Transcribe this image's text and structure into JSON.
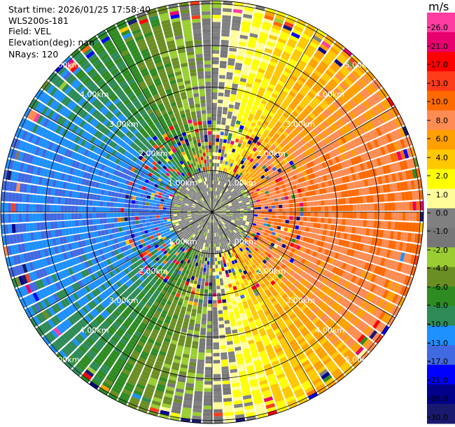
{
  "header": {
    "start_time": "Start time: 2026/01/25 17:58:40",
    "instrument": "WLS200s-181",
    "field": "Field: VEL",
    "elevation": "Elevation(deg): nan",
    "nrays": "NRays: 120"
  },
  "ppi": {
    "num_rays": 120,
    "range_labels": [
      "1.00km",
      "2.00km",
      "3.00km",
      "4.00km",
      "5.00km"
    ]
  },
  "colorbar": {
    "unit": "m/s",
    "tick_labels": [
      "26.0",
      "21.0",
      "17.0",
      "13.0",
      "10.0",
      "8.0",
      "6.0",
      "4.0",
      "2.0",
      "1.0",
      "0.0",
      "-1.0",
      "-2.0",
      "-4.0",
      "-6.0",
      "-8.0",
      "-10.0",
      "-13.0",
      "-17.0",
      "-21.0",
      "-26.0",
      "-30.0"
    ],
    "colors": [
      "#ff3da0",
      "#e8006e",
      "#ff0000",
      "#ff3b1a",
      "#ff6a00",
      "#ff8c52",
      "#ffa000",
      "#ffc800",
      "#ffff00",
      "#fffd9a",
      "#808080",
      "#777777",
      "#9acd32",
      "#6b8e23",
      "#2e8b22",
      "#2e8b57",
      "#1e90ff",
      "#4169e1",
      "#0000ff",
      "#00008b",
      "#191970"
    ]
  }
}
